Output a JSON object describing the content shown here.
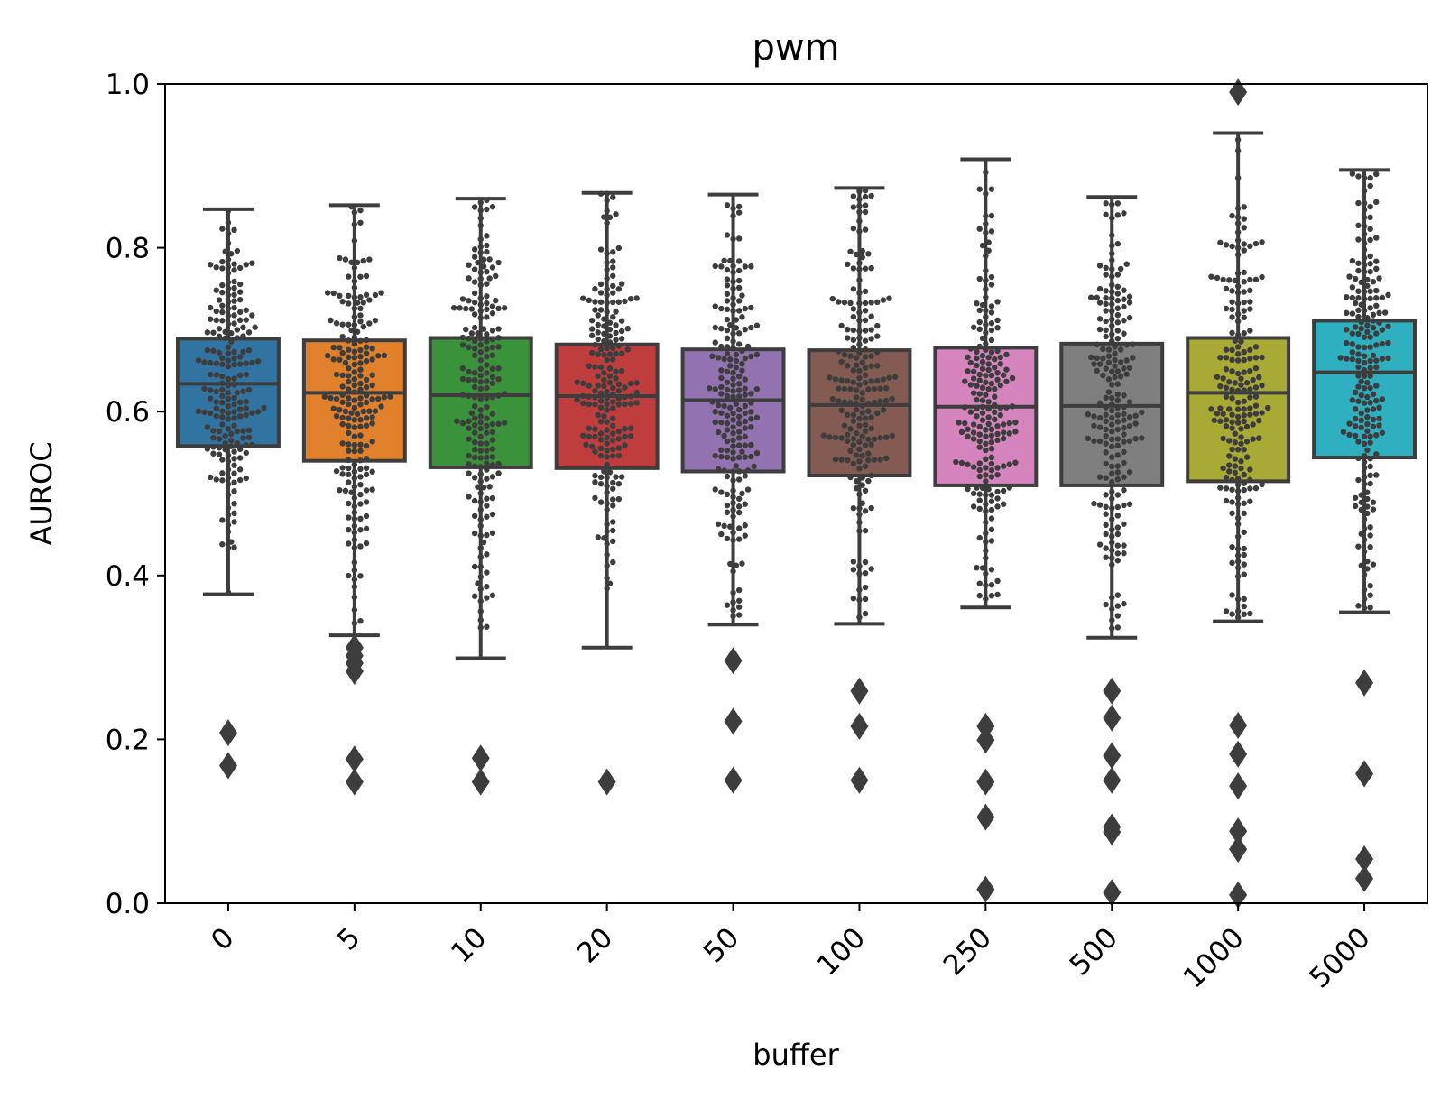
{
  "chart_data": {
    "type": "box",
    "title": "pwm",
    "xlabel": "buffer",
    "ylabel": "AUROC",
    "ylim": [
      0.0,
      1.0
    ],
    "yticks": [
      "0.0",
      "0.2",
      "0.4",
      "0.6",
      "0.8",
      "1.0"
    ],
    "categories": [
      "0",
      "5",
      "10",
      "20",
      "50",
      "100",
      "250",
      "500",
      "1000",
      "5000"
    ],
    "colors": [
      "#3274a1",
      "#e1812c",
      "#3a923a",
      "#c03d3e",
      "#9372b2",
      "#845b53",
      "#d684bd",
      "#7f7f7f",
      "#a9aa35",
      "#2eb0c0"
    ],
    "overlay": "swarm points (dark grey) over each box",
    "boxes": [
      {
        "category": "0",
        "whisker_low": 0.377,
        "q1": 0.558,
        "median": 0.634,
        "q3": 0.689,
        "whisker_high": 0.847,
        "outliers": [
          0.168,
          0.208
        ]
      },
      {
        "category": "5",
        "whisker_low": 0.327,
        "q1": 0.54,
        "median": 0.623,
        "q3": 0.687,
        "whisker_high": 0.852,
        "outliers": [
          0.148,
          0.176,
          0.283,
          0.293,
          0.302,
          0.312
        ]
      },
      {
        "category": "10",
        "whisker_low": 0.299,
        "q1": 0.532,
        "median": 0.62,
        "q3": 0.69,
        "whisker_high": 0.86,
        "outliers": [
          0.148,
          0.177
        ]
      },
      {
        "category": "20",
        "whisker_low": 0.312,
        "q1": 0.531,
        "median": 0.619,
        "q3": 0.682,
        "whisker_high": 0.867,
        "outliers": [
          0.148
        ]
      },
      {
        "category": "50",
        "whisker_low": 0.34,
        "q1": 0.527,
        "median": 0.614,
        "q3": 0.676,
        "whisker_high": 0.865,
        "outliers": [
          0.15,
          0.222,
          0.296
        ]
      },
      {
        "category": "100",
        "whisker_low": 0.341,
        "q1": 0.522,
        "median": 0.608,
        "q3": 0.675,
        "whisker_high": 0.873,
        "outliers": [
          0.15,
          0.216,
          0.259
        ]
      },
      {
        "category": "250",
        "whisker_low": 0.361,
        "q1": 0.51,
        "median": 0.606,
        "q3": 0.678,
        "whisker_high": 0.908,
        "outliers": [
          0.017,
          0.105,
          0.148,
          0.199,
          0.216
        ]
      },
      {
        "category": "500",
        "whisker_low": 0.324,
        "q1": 0.51,
        "median": 0.607,
        "q3": 0.683,
        "whisker_high": 0.862,
        "outliers": [
          0.013,
          0.087,
          0.093,
          0.15,
          0.18,
          0.226,
          0.259
        ]
      },
      {
        "category": "1000",
        "whisker_low": 0.344,
        "q1": 0.515,
        "median": 0.623,
        "q3": 0.69,
        "whisker_high": 0.94,
        "outliers": [
          0.01,
          0.066,
          0.088,
          0.143,
          0.182,
          0.217,
          0.99
        ]
      },
      {
        "category": "5000",
        "whisker_low": 0.355,
        "q1": 0.544,
        "median": 0.648,
        "q3": 0.711,
        "whisker_high": 0.895,
        "outliers": [
          0.03,
          0.054,
          0.158,
          0.269
        ]
      }
    ]
  }
}
